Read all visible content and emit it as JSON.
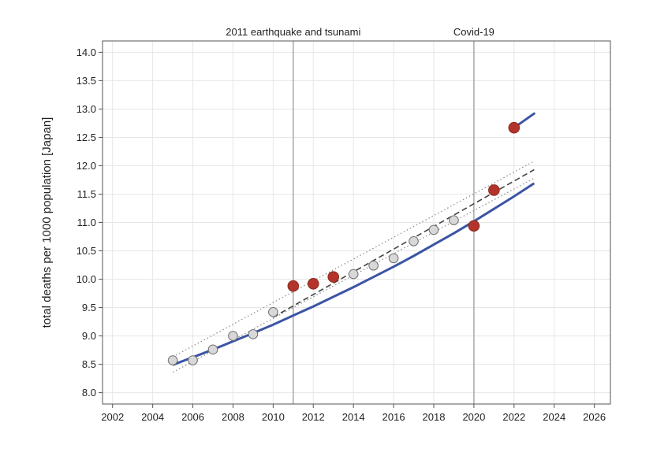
{
  "chart_data": {
    "type": "line",
    "title": "",
    "xlabel": "",
    "ylabel": "total deaths per 1000 population [Japan]",
    "xlim": [
      2001.5,
      2026.8
    ],
    "ylim": [
      7.8,
      14.2
    ],
    "x_ticks": [
      2002,
      2004,
      2006,
      2008,
      2010,
      2012,
      2014,
      2016,
      2018,
      2020,
      2022,
      2024,
      2026
    ],
    "y_ticks": [
      "8.0",
      "8.5",
      "9.0",
      "9.5",
      "10.0",
      "10.5",
      "11.0",
      "11.5",
      "12.0",
      "12.5",
      "13.0",
      "13.5",
      "14.0"
    ],
    "grid": true,
    "legend": "none",
    "events": [
      {
        "x": 2011,
        "label": "2011 earthquake and tsunami"
      },
      {
        "x": 2020,
        "label": "Covid-19"
      }
    ],
    "series": [
      {
        "kind": "observed",
        "x": [
          2005,
          2006,
          2007,
          2008,
          2009,
          2010,
          2011,
          2012,
          2013,
          2014,
          2015,
          2016,
          2017,
          2018,
          2019,
          2020,
          2021,
          2022
        ],
        "y": [
          8.57,
          8.57,
          8.76,
          9.0,
          9.03,
          9.42,
          9.88,
          9.92,
          10.04,
          10.09,
          10.24,
          10.37,
          10.67,
          10.87,
          11.04,
          10.94,
          11.57,
          12.67
        ],
        "highlight": [
          false,
          false,
          false,
          false,
          false,
          false,
          true,
          true,
          true,
          false,
          false,
          false,
          false,
          false,
          false,
          true,
          true,
          true
        ]
      },
      {
        "kind": "fit",
        "x": [
          2005,
          2007,
          2009,
          2010,
          2011,
          2012,
          2013,
          2014,
          2015,
          2016,
          2017,
          2018,
          2019,
          2020,
          2021,
          2022,
          2023
        ],
        "y": [
          8.49,
          8.76,
          9.05,
          9.2,
          9.36,
          9.52,
          9.69,
          9.86,
          10.04,
          10.22,
          10.41,
          10.61,
          10.81,
          11.02,
          11.24,
          11.46,
          11.69
        ]
      },
      {
        "kind": "fit-extension",
        "x": [
          2022,
          2023
        ],
        "y": [
          12.67,
          12.92
        ]
      },
      {
        "kind": "trend",
        "x": [
          2010,
          2023
        ],
        "y": [
          9.33,
          11.93
        ]
      },
      {
        "kind": "trend-upper",
        "x": [
          2005,
          2023
        ],
        "y": [
          8.63,
          12.08
        ]
      },
      {
        "kind": "trend-lower",
        "x": [
          2005,
          2023
        ],
        "y": [
          8.36,
          11.78
        ]
      }
    ],
    "colors": {
      "fit_line": "#3b55a5",
      "observed_marker": "#d8d8d8",
      "highlight_marker": "#b3342b",
      "trend": "#444444",
      "event_line": "#a9a9a9",
      "grid": "#e6e6e6"
    }
  }
}
